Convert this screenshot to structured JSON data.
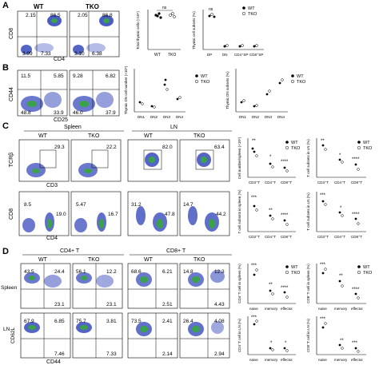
{
  "panels": {
    "A": {
      "letter": "A",
      "groups": [
        "WT",
        "TKO"
      ],
      "y_axis": "CD8",
      "x_axis": "CD4",
      "wt_values": [
        "2.15",
        "86.5",
        "3.99",
        "7.33"
      ],
      "tko_values": [
        "2.05",
        "86.8",
        "3.10",
        "6.38"
      ],
      "chart1": {
        "ylabel": "Total thymic cells (×10⁶)",
        "ns": "ns",
        "categories": [
          "WT",
          "TKO"
        ],
        "yticks": [
          "250",
          "200",
          "150",
          "100",
          "50",
          "0"
        ]
      },
      "chart2": {
        "ylabel": "Thymic cell subsets (%)",
        "ns": "ns",
        "categories": [
          "DP",
          "DN",
          "CD4⁺SP",
          "CD8⁺SP"
        ],
        "yticks": [
          "100",
          "80",
          "60",
          "40",
          "20",
          "0"
        ]
      },
      "legend": [
        "WT",
        "TKO"
      ]
    },
    "B": {
      "letter": "B",
      "y_axis": "CD44",
      "x_axis": "CD25",
      "wt_values": [
        "11.5",
        "5.85",
        "48.8",
        "33.9"
      ],
      "tko_values": [
        "9.28",
        "6.82",
        "46.0",
        "37.9"
      ],
      "chart1": {
        "ylabel": "Thymic DN cell number (×10⁵)",
        "categories": [
          "DN1",
          "DN2",
          "DN3",
          "DN4"
        ]
      },
      "chart2": {
        "ylabel": "Thymic DN subsets (%)",
        "categories": [
          "DN1",
          "DN2",
          "DN3",
          "DN4"
        ]
      },
      "legend": [
        "WT",
        "TKO"
      ]
    },
    "C": {
      "letter": "C",
      "tissues": [
        "Spleen",
        "LN"
      ],
      "groups": [
        "WT",
        "TKO",
        "WT",
        "TKO"
      ],
      "row1": {
        "y_axis": "TCRβ",
        "x_axis": "CD3",
        "values": [
          "29.3",
          "22.2",
          "82.0",
          "63.4"
        ]
      },
      "row2": {
        "y_axis": "CD8",
        "x_axis": "CD4",
        "values": [
          [
            "8.5",
            "19.0"
          ],
          [
            "5.47",
            "16.7"
          ],
          [
            "31.2",
            "47.8"
          ],
          [
            "14.7",
            "44.2"
          ]
        ]
      },
      "chart1": {
        "ylabel": "Cell number/spleen (×10⁶)",
        "categories": [
          "CD3⁺T",
          "CD4⁺T",
          "CD8⁺T"
        ],
        "sig": [
          "**",
          "*",
          "****"
        ]
      },
      "chart2": {
        "ylabel": "T cell subsets in LN (%)",
        "categories": [
          "CD3⁺T",
          "CD4⁺T",
          "CD8⁺T"
        ],
        "sig": [
          "**",
          "*",
          "****"
        ]
      },
      "chart3": {
        "ylabel": "T cell subsets in spleen (%)",
        "categories": [
          "CD3⁺T",
          "CD4⁺T",
          "CD8⁺T"
        ],
        "sig": [
          "***",
          "**",
          "****"
        ]
      },
      "chart4": {
        "ylabel": "T cell subsets in LN (%)",
        "categories": [
          "CD3⁺T",
          "CD4⁺T",
          "CD8⁺T"
        ],
        "sig": [
          "***",
          "*",
          "****"
        ]
      },
      "legend": [
        "WT",
        "TKO"
      ]
    },
    "D": {
      "letter": "D",
      "col_groups": [
        "CD4+ T",
        "CD8+ T"
      ],
      "groups": [
        "WT",
        "TKO",
        "WT",
        "TKO"
      ],
      "rows": [
        "Spleen",
        "LN"
      ],
      "y_axis": "CD62L",
      "x_axis": "CD44",
      "spleen_values": [
        [
          "43.5",
          "24.4",
          "23.1"
        ],
        [
          "56.1",
          "12.2",
          "23.1"
        ],
        [
          "68.6",
          "6.21",
          "2.51"
        ],
        [
          "14.8",
          "12.3",
          "4.43"
        ]
      ],
      "ln_values": [
        [
          "67.9",
          "6.85",
          "7.46"
        ],
        [
          "75.7",
          "3.81",
          "7.33"
        ],
        [
          "73.5",
          "2.41",
          "2.14"
        ],
        [
          "26.4",
          "4.08",
          "2.94"
        ]
      ],
      "chart1": {
        "ylabel": "CD4⁺T cell in spleen (%)",
        "categories": [
          "naive",
          "memory",
          "effector"
        ],
        "sig": [
          "***",
          "**",
          "****"
        ]
      },
      "chart2": {
        "ylabel": "CD8⁺T cell in spleen (%)",
        "categories": [
          "naive",
          "memory",
          "effector"
        ],
        "sig": [
          "***",
          "**",
          "****"
        ]
      },
      "chart3": {
        "ylabel": "CD4⁺T cell in LN (%)",
        "categories": [
          "naive",
          "memory",
          "effector"
        ],
        "sig": [
          "***",
          "*",
          "*"
        ]
      },
      "chart4": {
        "ylabel": "CD8⁺T cell in LN (%)",
        "categories": [
          "naive",
          "memory",
          "effector"
        ],
        "sig": [
          "***",
          "**",
          "***"
        ]
      },
      "legend": [
        "WT",
        "TKO"
      ]
    }
  },
  "colors": {
    "dot_blue": "#2b3fb8",
    "dot_green": "#3aa34a",
    "dot_red": "#e0342b",
    "gate": "#000000"
  }
}
